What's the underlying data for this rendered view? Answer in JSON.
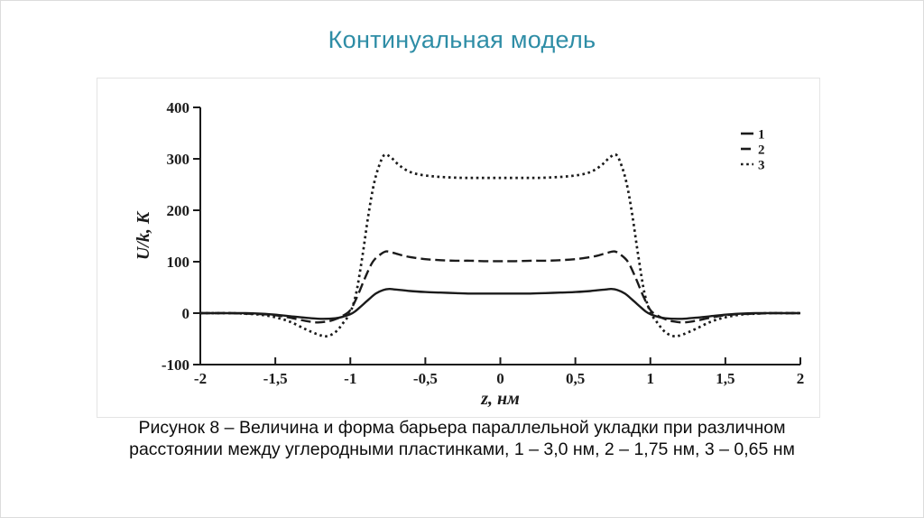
{
  "slide": {
    "title": "Континуальная модель",
    "accent_color": "#2e8da6",
    "caption_line1": "Рисунок 8 – Величина и форма барьера параллельной укладки при различном",
    "caption_line2": "расстоянии между углеродными пластинками, 1 – 3,0 нм, 2 – 1,75 нм, 3 – 0,65 нм"
  },
  "chart_data": {
    "type": "line",
    "title": "",
    "xlabel": "z, нм",
    "ylabel": "U/k, K",
    "xlim": [
      -2,
      2
    ],
    "ylim": [
      -100,
      400
    ],
    "grid": false,
    "legend_position": "top-right",
    "ink_color": "#1b1b1b",
    "x_ticks": [
      {
        "v": -2,
        "label": "-2"
      },
      {
        "v": -1.5,
        "label": "-1,5"
      },
      {
        "v": -1,
        "label": "-1"
      },
      {
        "v": -0.5,
        "label": "-0,5"
      },
      {
        "v": 0,
        "label": "0"
      },
      {
        "v": 0.5,
        "label": "0,5"
      },
      {
        "v": 1,
        "label": "1"
      },
      {
        "v": 1.5,
        "label": "1,5"
      },
      {
        "v": 2,
        "label": "2"
      }
    ],
    "y_ticks": [
      {
        "v": 400,
        "label": "400"
      },
      {
        "v": 300,
        "label": "300"
      },
      {
        "v": 200,
        "label": "200"
      },
      {
        "v": 100,
        "label": "100"
      },
      {
        "v": 0,
        "label": "0"
      },
      {
        "v": -100,
        "label": "-100"
      }
    ],
    "series": [
      {
        "name": "curve-1",
        "legend_label": "1",
        "line_style": "solid",
        "points": [
          [
            -2,
            0
          ],
          [
            -1.9,
            0
          ],
          [
            -1.8,
            0
          ],
          [
            -1.7,
            0
          ],
          [
            -1.6,
            -1
          ],
          [
            -1.5,
            -3
          ],
          [
            -1.4,
            -6
          ],
          [
            -1.3,
            -9
          ],
          [
            -1.2,
            -11
          ],
          [
            -1.1,
            -10
          ],
          [
            -1.05,
            -7
          ],
          [
            -1,
            -2
          ],
          [
            -0.97,
            3
          ],
          [
            -0.93,
            13
          ],
          [
            -0.88,
            26
          ],
          [
            -0.83,
            38
          ],
          [
            -0.78,
            45
          ],
          [
            -0.74,
            47
          ],
          [
            -0.7,
            46
          ],
          [
            -0.6,
            43
          ],
          [
            -0.5,
            41
          ],
          [
            -0.4,
            40
          ],
          [
            -0.3,
            39
          ],
          [
            -0.2,
            38
          ],
          [
            -0.1,
            38
          ],
          [
            0,
            38
          ],
          [
            0.1,
            38
          ],
          [
            0.2,
            38
          ],
          [
            0.3,
            39
          ],
          [
            0.4,
            40
          ],
          [
            0.5,
            41
          ],
          [
            0.6,
            43
          ],
          [
            0.7,
            46
          ],
          [
            0.74,
            47
          ],
          [
            0.78,
            45
          ],
          [
            0.83,
            38
          ],
          [
            0.88,
            26
          ],
          [
            0.93,
            13
          ],
          [
            0.97,
            3
          ],
          [
            1,
            -2
          ],
          [
            1.05,
            -7
          ],
          [
            1.1,
            -10
          ],
          [
            1.2,
            -11
          ],
          [
            1.3,
            -9
          ],
          [
            1.4,
            -6
          ],
          [
            1.5,
            -3
          ],
          [
            1.6,
            -1
          ],
          [
            1.7,
            0
          ],
          [
            1.8,
            0
          ],
          [
            1.9,
            0
          ],
          [
            2,
            0
          ]
        ]
      },
      {
        "name": "curve-2",
        "legend_label": "2",
        "line_style": "dashed",
        "points": [
          [
            -2,
            0
          ],
          [
            -1.9,
            0
          ],
          [
            -1.8,
            0
          ],
          [
            -1.7,
            -1
          ],
          [
            -1.6,
            -2
          ],
          [
            -1.5,
            -4
          ],
          [
            -1.4,
            -9
          ],
          [
            -1.3,
            -15
          ],
          [
            -1.22,
            -18
          ],
          [
            -1.15,
            -16
          ],
          [
            -1.1,
            -12
          ],
          [
            -1.05,
            -5
          ],
          [
            -1,
            6
          ],
          [
            -0.95,
            35
          ],
          [
            -0.9,
            70
          ],
          [
            -0.85,
            100
          ],
          [
            -0.8,
            114
          ],
          [
            -0.76,
            120
          ],
          [
            -0.71,
            117
          ],
          [
            -0.65,
            112
          ],
          [
            -0.6,
            109
          ],
          [
            -0.5,
            105
          ],
          [
            -0.4,
            103
          ],
          [
            -0.3,
            102
          ],
          [
            -0.2,
            102
          ],
          [
            -0.1,
            101
          ],
          [
            0,
            101
          ],
          [
            0.1,
            101
          ],
          [
            0.2,
            102
          ],
          [
            0.3,
            102
          ],
          [
            0.4,
            103
          ],
          [
            0.5,
            105
          ],
          [
            0.6,
            109
          ],
          [
            0.65,
            112
          ],
          [
            0.71,
            117
          ],
          [
            0.76,
            120
          ],
          [
            0.8,
            114
          ],
          [
            0.85,
            100
          ],
          [
            0.9,
            70
          ],
          [
            0.95,
            35
          ],
          [
            1,
            6
          ],
          [
            1.05,
            -5
          ],
          [
            1.1,
            -12
          ],
          [
            1.15,
            -16
          ],
          [
            1.22,
            -18
          ],
          [
            1.3,
            -15
          ],
          [
            1.4,
            -9
          ],
          [
            1.5,
            -4
          ],
          [
            1.6,
            -2
          ],
          [
            1.7,
            -1
          ],
          [
            1.8,
            0
          ],
          [
            1.9,
            0
          ],
          [
            2,
            0
          ]
        ]
      },
      {
        "name": "curve-3",
        "legend_label": "3",
        "line_style": "dotted",
        "points": [
          [
            -2,
            0
          ],
          [
            -1.9,
            0
          ],
          [
            -1.8,
            0
          ],
          [
            -1.7,
            -1
          ],
          [
            -1.6,
            -3
          ],
          [
            -1.5,
            -8
          ],
          [
            -1.4,
            -17
          ],
          [
            -1.3,
            -31
          ],
          [
            -1.22,
            -41
          ],
          [
            -1.16,
            -45
          ],
          [
            -1.1,
            -37
          ],
          [
            -1.05,
            -20
          ],
          [
            -1,
            2
          ],
          [
            -0.96,
            40
          ],
          [
            -0.92,
            110
          ],
          [
            -0.88,
            190
          ],
          [
            -0.84,
            255
          ],
          [
            -0.8,
            293
          ],
          [
            -0.77,
            308
          ],
          [
            -0.73,
            303
          ],
          [
            -0.68,
            289
          ],
          [
            -0.62,
            277
          ],
          [
            -0.55,
            270
          ],
          [
            -0.45,
            266
          ],
          [
            -0.35,
            264
          ],
          [
            -0.25,
            263
          ],
          [
            -0.15,
            263
          ],
          [
            0,
            263
          ],
          [
            0.15,
            263
          ],
          [
            0.25,
            263
          ],
          [
            0.35,
            264
          ],
          [
            0.45,
            266
          ],
          [
            0.55,
            270
          ],
          [
            0.62,
            277
          ],
          [
            0.68,
            289
          ],
          [
            0.73,
            303
          ],
          [
            0.77,
            308
          ],
          [
            0.8,
            293
          ],
          [
            0.84,
            255
          ],
          [
            0.88,
            190
          ],
          [
            0.92,
            110
          ],
          [
            0.96,
            40
          ],
          [
            1,
            2
          ],
          [
            1.05,
            -20
          ],
          [
            1.1,
            -37
          ],
          [
            1.16,
            -45
          ],
          [
            1.22,
            -41
          ],
          [
            1.3,
            -31
          ],
          [
            1.4,
            -17
          ],
          [
            1.5,
            -8
          ],
          [
            1.6,
            -3
          ],
          [
            1.7,
            -1
          ],
          [
            1.8,
            0
          ],
          [
            1.9,
            0
          ],
          [
            2,
            0
          ]
        ]
      }
    ]
  }
}
